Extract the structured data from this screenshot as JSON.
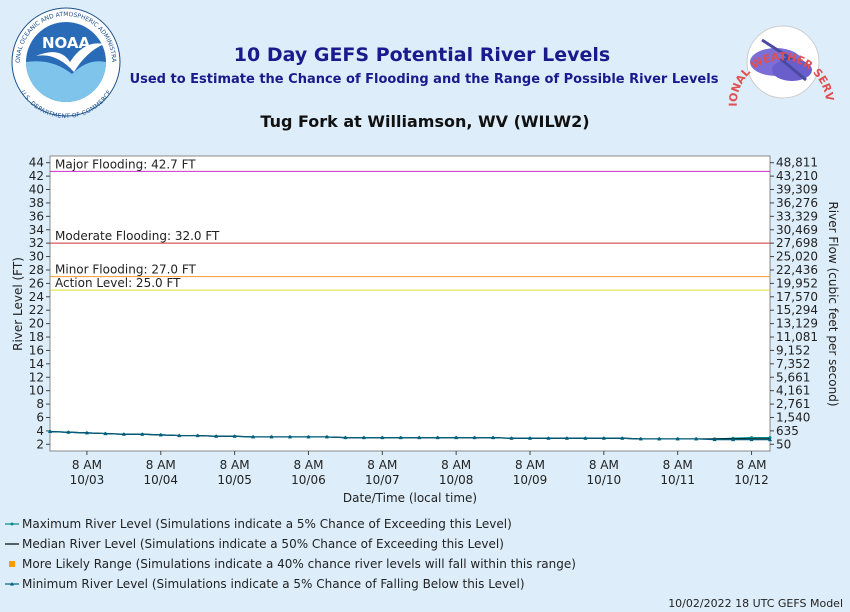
{
  "chart_data": {
    "type": "line",
    "title": "10 Day GEFS Potential River Levels",
    "subtitle": "Used to Estimate the Chance of Flooding and the Range of Possible River Levels",
    "location": "Tug Fork at Williamson, WV (WILW2)",
    "ylabel": "River Level (FT)",
    "y2label": "River Flow (cubic feet per second)",
    "xlabel": "Date/Time (local time)",
    "footer": "10/02/2022 18 UTC GEFS Model",
    "logos": {
      "noaa": "NOAA",
      "noaa_ring_top": "NATIONAL OCEANIC AND ATMOSPHERIC ADMINISTRATION",
      "noaa_ring_bottom": "U.S. DEPARTMENT OF COMMERCE",
      "nws_ring": "NATIONAL WEATHER SERVICE"
    },
    "ylim": [
      1,
      45
    ],
    "yticks": [
      2,
      4,
      6,
      8,
      10,
      12,
      14,
      16,
      18,
      20,
      22,
      24,
      26,
      28,
      30,
      32,
      34,
      36,
      38,
      40,
      42,
      44
    ],
    "y2ticks": [
      {
        "value": 50,
        "label": "50"
      },
      {
        "value": 635,
        "label": "635"
      },
      {
        "value": 1540,
        "label": "1,540"
      },
      {
        "value": 2761,
        "label": "2,761"
      },
      {
        "value": 4161,
        "label": "4,161"
      },
      {
        "value": 5661,
        "label": "5,661"
      },
      {
        "value": 7352,
        "label": "7,352"
      },
      {
        "value": 9152,
        "label": "9,152"
      },
      {
        "value": 11081,
        "label": "11,081"
      },
      {
        "value": 13129,
        "label": "13,129"
      },
      {
        "value": 15294,
        "label": "15,294"
      },
      {
        "value": 17570,
        "label": "17,570"
      },
      {
        "value": 19952,
        "label": "19,952"
      },
      {
        "value": 22436,
        "label": "22,436"
      },
      {
        "value": 25020,
        "label": "25,020"
      },
      {
        "value": 27698,
        "label": "27,698"
      },
      {
        "value": 30469,
        "label": "30,469"
      },
      {
        "value": 33329,
        "label": "33,329"
      },
      {
        "value": 36276,
        "label": "36,276"
      },
      {
        "value": 39309,
        "label": "39,309"
      },
      {
        "value": 43210,
        "label": "43,210"
      },
      {
        "value": 48811,
        "label": "48,811"
      }
    ],
    "xlim": [
      "2022-10-02T20:00",
      "2022-10-12T14:00"
    ],
    "xticks": [
      {
        "value": "2022-10-03T08:00",
        "label": [
          "8 AM",
          "10/03"
        ]
      },
      {
        "value": "2022-10-04T08:00",
        "label": [
          "8 AM",
          "10/04"
        ]
      },
      {
        "value": "2022-10-05T08:00",
        "label": [
          "8 AM",
          "10/05"
        ]
      },
      {
        "value": "2022-10-06T08:00",
        "label": [
          "8 AM",
          "10/06"
        ]
      },
      {
        "value": "2022-10-07T08:00",
        "label": [
          "8 AM",
          "10/07"
        ]
      },
      {
        "value": "2022-10-08T08:00",
        "label": [
          "8 AM",
          "10/08"
        ]
      },
      {
        "value": "2022-10-09T08:00",
        "label": [
          "8 AM",
          "10/09"
        ]
      },
      {
        "value": "2022-10-10T08:00",
        "label": [
          "8 AM",
          "10/10"
        ]
      },
      {
        "value": "2022-10-11T08:00",
        "label": [
          "8 AM",
          "10/11"
        ]
      },
      {
        "value": "2022-10-12T08:00",
        "label": [
          "8 AM",
          "10/12"
        ]
      }
    ],
    "thresholds": [
      {
        "label": "Major Flooding: 42.7 FT",
        "value": 42.7,
        "color": "#cc33cc"
      },
      {
        "label": "Moderate Flooding: 32.0 FT",
        "value": 32.0,
        "color": "#cc3333"
      },
      {
        "label": "Minor Flooding: 27.0 FT",
        "value": 27.0,
        "color": "#ff9933"
      },
      {
        "label": "Action Level: 25.0 FT",
        "value": 25.0,
        "color": "#dddd33"
      }
    ],
    "x": [
      "2022-10-02T20:00",
      "2022-10-03T02:00",
      "2022-10-03T08:00",
      "2022-10-03T14:00",
      "2022-10-03T20:00",
      "2022-10-04T02:00",
      "2022-10-04T08:00",
      "2022-10-04T14:00",
      "2022-10-04T20:00",
      "2022-10-05T02:00",
      "2022-10-05T08:00",
      "2022-10-05T14:00",
      "2022-10-05T20:00",
      "2022-10-06T02:00",
      "2022-10-06T08:00",
      "2022-10-06T14:00",
      "2022-10-06T20:00",
      "2022-10-07T02:00",
      "2022-10-07T08:00",
      "2022-10-07T14:00",
      "2022-10-07T20:00",
      "2022-10-08T02:00",
      "2022-10-08T08:00",
      "2022-10-08T14:00",
      "2022-10-08T20:00",
      "2022-10-09T02:00",
      "2022-10-09T08:00",
      "2022-10-09T14:00",
      "2022-10-09T20:00",
      "2022-10-10T02:00",
      "2022-10-10T08:00",
      "2022-10-10T14:00",
      "2022-10-10T20:00",
      "2022-10-11T02:00",
      "2022-10-11T08:00",
      "2022-10-11T14:00",
      "2022-10-11T20:00",
      "2022-10-12T02:00",
      "2022-10-12T08:00",
      "2022-10-12T14:00"
    ],
    "range": {
      "name": "More Likely Range (Simulations indicate a 40% chance river levels will fall within this range)",
      "color": "#ff9900",
      "lower": [
        3.9,
        3.8,
        3.7,
        3.6,
        3.5,
        3.5,
        3.4,
        3.3,
        3.3,
        3.2,
        3.2,
        3.1,
        3.1,
        3.1,
        3.1,
        3.1,
        3.0,
        3.0,
        3.0,
        3.0,
        3.0,
        3.0,
        3.0,
        3.0,
        3.0,
        2.9,
        2.9,
        2.9,
        2.9,
        2.9,
        2.9,
        2.9,
        2.8,
        2.8,
        2.8,
        2.8,
        2.8,
        2.8,
        2.8,
        2.8
      ],
      "upper": [
        3.9,
        3.8,
        3.7,
        3.6,
        3.5,
        3.5,
        3.4,
        3.3,
        3.3,
        3.2,
        3.2,
        3.1,
        3.1,
        3.1,
        3.1,
        3.1,
        3.0,
        3.0,
        3.0,
        3.0,
        3.0,
        3.0,
        3.0,
        3.0,
        3.0,
        2.9,
        2.9,
        2.9,
        2.9,
        2.9,
        2.9,
        2.9,
        2.8,
        2.8,
        2.8,
        2.8,
        2.8,
        2.9,
        2.9,
        2.9
      ]
    },
    "series": [
      {
        "name": "Maximum River Level (Simulations indicate a 5% Chance of Exceeding this Level)",
        "color": "#008b8b",
        "marker": "dot",
        "values": [
          3.9,
          3.8,
          3.7,
          3.6,
          3.5,
          3.5,
          3.4,
          3.3,
          3.3,
          3.2,
          3.2,
          3.1,
          3.1,
          3.1,
          3.1,
          3.1,
          3.0,
          3.0,
          3.0,
          3.0,
          3.0,
          3.0,
          3.0,
          3.0,
          3.0,
          2.9,
          2.9,
          2.9,
          2.9,
          2.9,
          2.9,
          2.9,
          2.8,
          2.8,
          2.8,
          2.8,
          2.8,
          2.9,
          3.0,
          3.0
        ]
      },
      {
        "name": "Median River Level (Simulations indicate a 50% Chance of Exceeding this Level)",
        "color": "#000000",
        "marker": "none",
        "values": [
          3.9,
          3.8,
          3.7,
          3.6,
          3.5,
          3.5,
          3.4,
          3.3,
          3.3,
          3.2,
          3.2,
          3.1,
          3.1,
          3.1,
          3.1,
          3.1,
          3.0,
          3.0,
          3.0,
          3.0,
          3.0,
          3.0,
          3.0,
          3.0,
          3.0,
          2.9,
          2.9,
          2.9,
          2.9,
          2.9,
          2.9,
          2.9,
          2.8,
          2.8,
          2.8,
          2.8,
          2.8,
          2.8,
          2.8,
          2.8
        ]
      },
      {
        "name": "Minimum River Level (Simulations indicate a 5% Chance of Falling Below this Level)",
        "color": "#005f7f",
        "marker": "triangle",
        "values": [
          3.9,
          3.8,
          3.7,
          3.6,
          3.5,
          3.5,
          3.4,
          3.3,
          3.3,
          3.2,
          3.2,
          3.1,
          3.1,
          3.1,
          3.1,
          3.1,
          3.0,
          3.0,
          3.0,
          3.0,
          3.0,
          3.0,
          3.0,
          3.0,
          3.0,
          2.9,
          2.9,
          2.9,
          2.9,
          2.9,
          2.9,
          2.9,
          2.8,
          2.8,
          2.8,
          2.8,
          2.7,
          2.7,
          2.7,
          2.7
        ]
      }
    ]
  }
}
